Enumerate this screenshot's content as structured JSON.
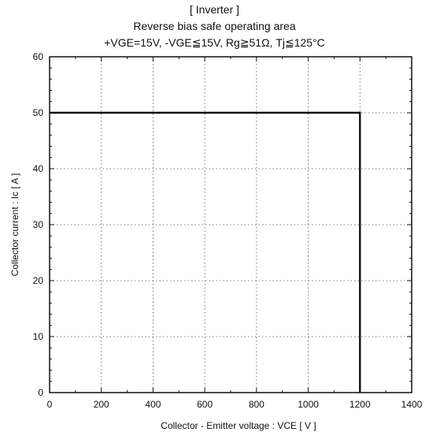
{
  "chart_data": {
    "type": "line",
    "title": "[ Inverter ]",
    "subtitle": "Reverse bias safe operating area",
    "conditions": "+VGE=15V,  -VGE≦15V, Rg≧51Ω,  Tj≦125°C",
    "xlabel": "Collector - Emitter voltage  :  VCE  [ V ]",
    "ylabel": "Collector current  : Ic  [ A ]",
    "xlim": [
      0,
      1400
    ],
    "ylim": [
      0,
      60
    ],
    "xticks": [
      0,
      200,
      400,
      600,
      800,
      1000,
      1200,
      1400
    ],
    "yticks": [
      0,
      10,
      20,
      30,
      40,
      50,
      60
    ],
    "grid": true,
    "series": [
      {
        "x": [
          0,
          1200,
          1200
        ],
        "y": [
          50,
          50,
          0
        ]
      }
    ]
  }
}
